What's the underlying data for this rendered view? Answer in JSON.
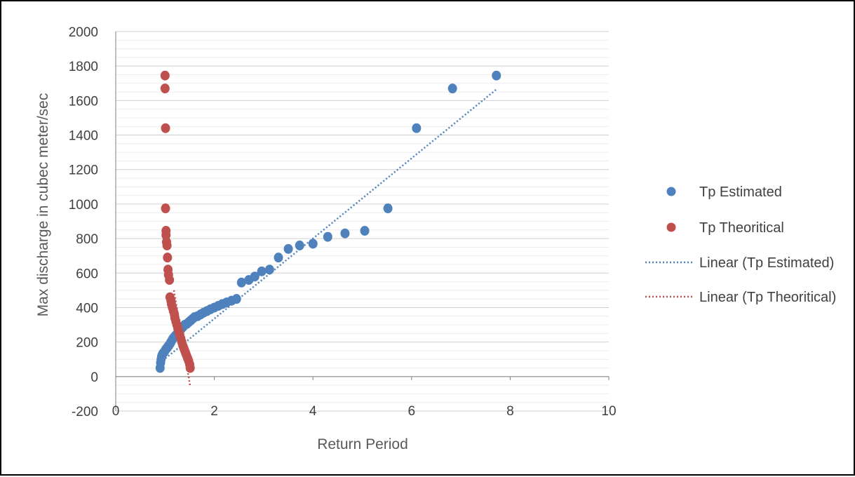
{
  "chart_data": {
    "type": "scatter",
    "xlabel": "Return Period",
    "ylabel": "Max discharge in cubec meter/sec",
    "xlim": [
      0,
      10
    ],
    "ylim": [
      -200,
      2000
    ],
    "x_ticks": [
      "0",
      "2",
      "4",
      "6",
      "8",
      "10"
    ],
    "y_ticks": [
      "-200",
      "0",
      "200",
      "400",
      "600",
      "800",
      "1000",
      "1200",
      "1400",
      "1600",
      "1800",
      "2000"
    ],
    "grid": "horizontal major and minor",
    "legend_position": "right",
    "series": [
      {
        "name": "Tp Estimated",
        "kind": "scatter",
        "color": "#4f81bd",
        "x": [
          0.9,
          0.91,
          0.92,
          0.93,
          0.94,
          0.96,
          0.98,
          1.0,
          1.02,
          1.04,
          1.06,
          1.08,
          1.1,
          1.12,
          1.14,
          1.16,
          1.19,
          1.22,
          1.25,
          1.28,
          1.31,
          1.34,
          1.37,
          1.4,
          1.44,
          1.48,
          1.52,
          1.56,
          1.6,
          1.66,
          1.72,
          1.78,
          1.85,
          1.92,
          2.0,
          2.08,
          2.16,
          2.25,
          2.35,
          2.45,
          2.55,
          2.7,
          2.82,
          2.96,
          3.12,
          3.3,
          3.5,
          3.73,
          4.0,
          4.3,
          4.65,
          5.05,
          5.52,
          6.1,
          6.83,
          7.72
        ],
        "y": [
          50,
          80,
          100,
          115,
          125,
          135,
          140,
          150,
          160,
          165,
          175,
          180,
          190,
          200,
          210,
          220,
          230,
          240,
          250,
          260,
          270,
          280,
          290,
          300,
          305,
          315,
          325,
          335,
          345,
          350,
          360,
          370,
          380,
          390,
          400,
          410,
          420,
          430,
          440,
          450,
          545,
          560,
          580,
          610,
          620,
          690,
          740,
          760,
          770,
          810,
          830,
          845,
          975,
          1440,
          1670,
          1745
        ]
      },
      {
        "name": "Tp Theoritical",
        "kind": "scatter",
        "color": "#c0504d",
        "x": [
          1.0,
          1.0,
          1.01,
          1.01,
          1.02,
          1.02,
          1.03,
          1.04,
          1.05,
          1.06,
          1.07,
          1.09,
          1.1,
          1.12,
          1.13,
          1.15,
          1.17,
          1.19,
          1.2,
          1.22,
          1.24,
          1.26,
          1.28,
          1.3,
          1.32,
          1.34,
          1.36,
          1.38,
          1.4,
          1.42,
          1.44,
          1.46,
          1.48,
          1.5,
          1.51
        ],
        "y": [
          1745,
          1670,
          1440,
          975,
          845,
          820,
          780,
          760,
          690,
          620,
          590,
          560,
          460,
          440,
          420,
          400,
          380,
          360,
          340,
          320,
          300,
          280,
          260,
          240,
          220,
          200,
          180,
          165,
          150,
          135,
          120,
          105,
          90,
          70,
          50
        ]
      },
      {
        "name": "Linear (Tp Estimated)",
        "kind": "trendline",
        "color": "#4f81bd",
        "x": [
          0.9,
          7.72
        ],
        "y": [
          80,
          1665
        ]
      },
      {
        "name": "Linear (Tp Theoritical)",
        "kind": "trendline",
        "color": "#c0504d",
        "x": [
          1.18,
          1.51
        ],
        "y": [
          500,
          -55
        ]
      }
    ]
  }
}
